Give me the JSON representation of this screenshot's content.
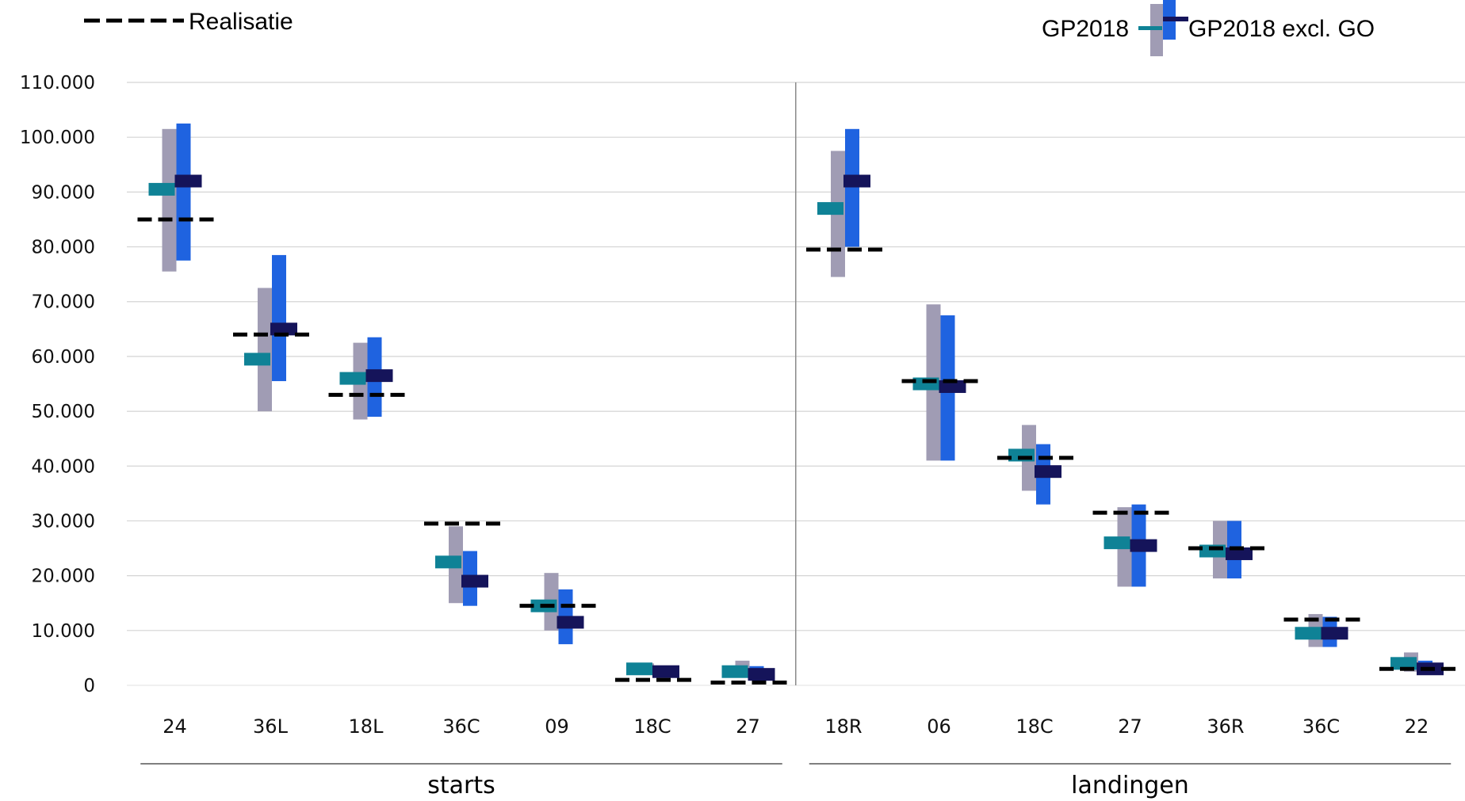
{
  "chart_data": {
    "type": "bar",
    "title": "",
    "xlabel": "",
    "ylabel": "",
    "ylim": [
      0,
      110000
    ],
    "y_ticks": [
      {
        "value": 0,
        "label": "0"
      },
      {
        "value": 10000,
        "label": "10.000"
      },
      {
        "value": 20000,
        "label": "20.000"
      },
      {
        "value": 30000,
        "label": "30.000"
      },
      {
        "value": 40000,
        "label": "40.000"
      },
      {
        "value": 50000,
        "label": "50.000"
      },
      {
        "value": 60000,
        "label": "60.000"
      },
      {
        "value": 70000,
        "label": "70.000"
      },
      {
        "value": 80000,
        "label": "80.000"
      },
      {
        "value": 90000,
        "label": "90.000"
      },
      {
        "value": 100000,
        "label": "100.000"
      },
      {
        "value": 110000,
        "label": "110.000"
      }
    ],
    "grid": true,
    "legend_position": "top",
    "legend": {
      "realisatie": "Realisatie",
      "gp2018": "GP2018",
      "gp2018_excl": "GP2018 excl. GO"
    },
    "colors": {
      "gp2018_range": "#a09cb4",
      "gp2018_mean": "#0f8296",
      "excl_range": "#1f63e0",
      "excl_mean": "#15145a",
      "realisatie": "#000000",
      "grid": "#d4d4d4",
      "divider": "#8a8a8a"
    },
    "groups": [
      {
        "name": "starts",
        "categories": [
          {
            "label": "24",
            "gp2018_min": 75500,
            "gp2018_max": 101500,
            "gp2018": 90500,
            "excl_min": 77500,
            "excl_max": 102500,
            "excl": 92000,
            "realisatie": 85000
          },
          {
            "label": "36L",
            "gp2018_min": 50000,
            "gp2018_max": 72500,
            "gp2018": 59500,
            "excl_min": 55500,
            "excl_max": 78500,
            "excl": 65000,
            "realisatie": 64000
          },
          {
            "label": "18L",
            "gp2018_min": 48500,
            "gp2018_max": 62500,
            "gp2018": 56000,
            "excl_min": 49000,
            "excl_max": 63500,
            "excl": 56500,
            "realisatie": 53000
          },
          {
            "label": "36C",
            "gp2018_min": 15000,
            "gp2018_max": 29000,
            "gp2018": 22500,
            "excl_min": 14500,
            "excl_max": 24500,
            "excl": 19000,
            "realisatie": 29500
          },
          {
            "label": "09",
            "gp2018_min": 10000,
            "gp2018_max": 20500,
            "gp2018": 14500,
            "excl_min": 7500,
            "excl_max": 17500,
            "excl": 11500,
            "realisatie": 14500
          },
          {
            "label": "18C",
            "gp2018_min": 2000,
            "gp2018_max": 4000,
            "gp2018": 3000,
            "excl_min": 1500,
            "excl_max": 3500,
            "excl": 2500,
            "realisatie": 1000
          },
          {
            "label": "27",
            "gp2018_min": 1500,
            "gp2018_max": 4500,
            "gp2018": 2500,
            "excl_min": 1000,
            "excl_max": 3500,
            "excl": 2000,
            "realisatie": 500
          }
        ]
      },
      {
        "name": "landingen",
        "categories": [
          {
            "label": "18R",
            "gp2018_min": 74500,
            "gp2018_max": 97500,
            "gp2018": 87000,
            "excl_min": 80000,
            "excl_max": 101500,
            "excl": 92000,
            "realisatie": 79500
          },
          {
            "label": "06",
            "gp2018_min": 41000,
            "gp2018_max": 69500,
            "gp2018": 55000,
            "excl_min": 41000,
            "excl_max": 67500,
            "excl": 54500,
            "realisatie": 55500
          },
          {
            "label": "18C",
            "gp2018_min": 35500,
            "gp2018_max": 47500,
            "gp2018": 42000,
            "excl_min": 33000,
            "excl_max": 44000,
            "excl": 39000,
            "realisatie": 41500
          },
          {
            "label": "27",
            "gp2018_min": 18000,
            "gp2018_max": 32500,
            "gp2018": 26000,
            "excl_min": 18000,
            "excl_max": 33000,
            "excl": 25500,
            "realisatie": 31500
          },
          {
            "label": "36R",
            "gp2018_min": 19500,
            "gp2018_max": 30000,
            "gp2018": 24500,
            "excl_min": 19500,
            "excl_max": 30000,
            "excl": 24000,
            "realisatie": 25000
          },
          {
            "label": "36C",
            "gp2018_min": 7000,
            "gp2018_max": 13000,
            "gp2018": 9500,
            "excl_min": 7000,
            "excl_max": 12500,
            "excl": 9500,
            "realisatie": 12000
          },
          {
            "label": "22",
            "gp2018_min": 2500,
            "gp2018_max": 6000,
            "gp2018": 4000,
            "excl_min": 2000,
            "excl_max": 4500,
            "excl": 3000,
            "realisatie": 3000
          }
        ]
      }
    ]
  }
}
